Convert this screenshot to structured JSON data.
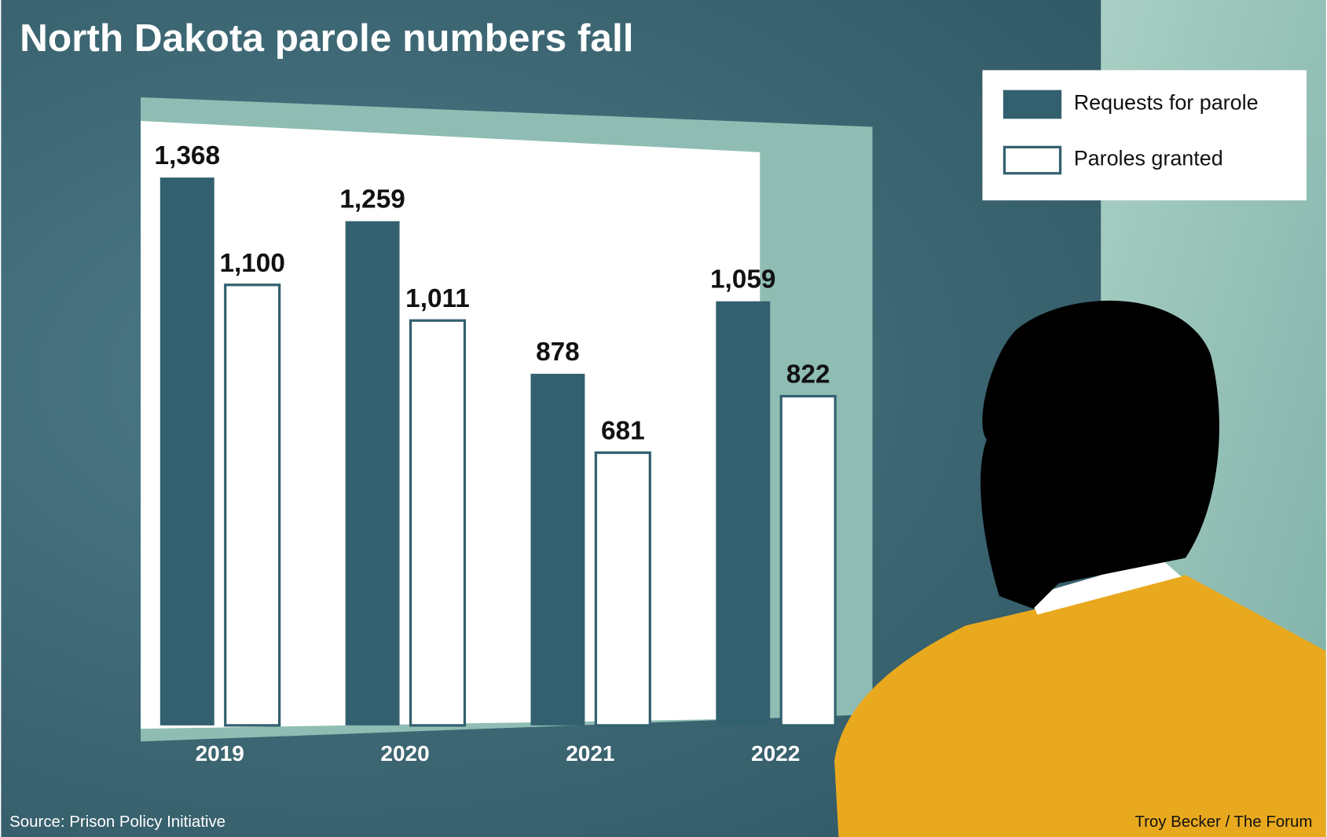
{
  "chart_data": {
    "type": "bar",
    "title": "North Dakota parole numbers fall",
    "categories": [
      "2019",
      "2020",
      "2021",
      "2022"
    ],
    "series": [
      {
        "name": "Requests for parole",
        "color": "#33606e",
        "values": [
          1368,
          1259,
          878,
          1059
        ],
        "value_labels": [
          "1,368",
          "1,259",
          "878",
          "1,059"
        ]
      },
      {
        "name": "Paroles granted",
        "color": "#ffffff",
        "values": [
          1100,
          1011,
          681,
          822
        ],
        "value_labels": [
          "1,100",
          "1,011",
          "681",
          "822"
        ]
      }
    ],
    "legend": "top-right",
    "source": "Source: Prison Policy Initiative",
    "credit": "Troy Becker / The Forum"
  }
}
